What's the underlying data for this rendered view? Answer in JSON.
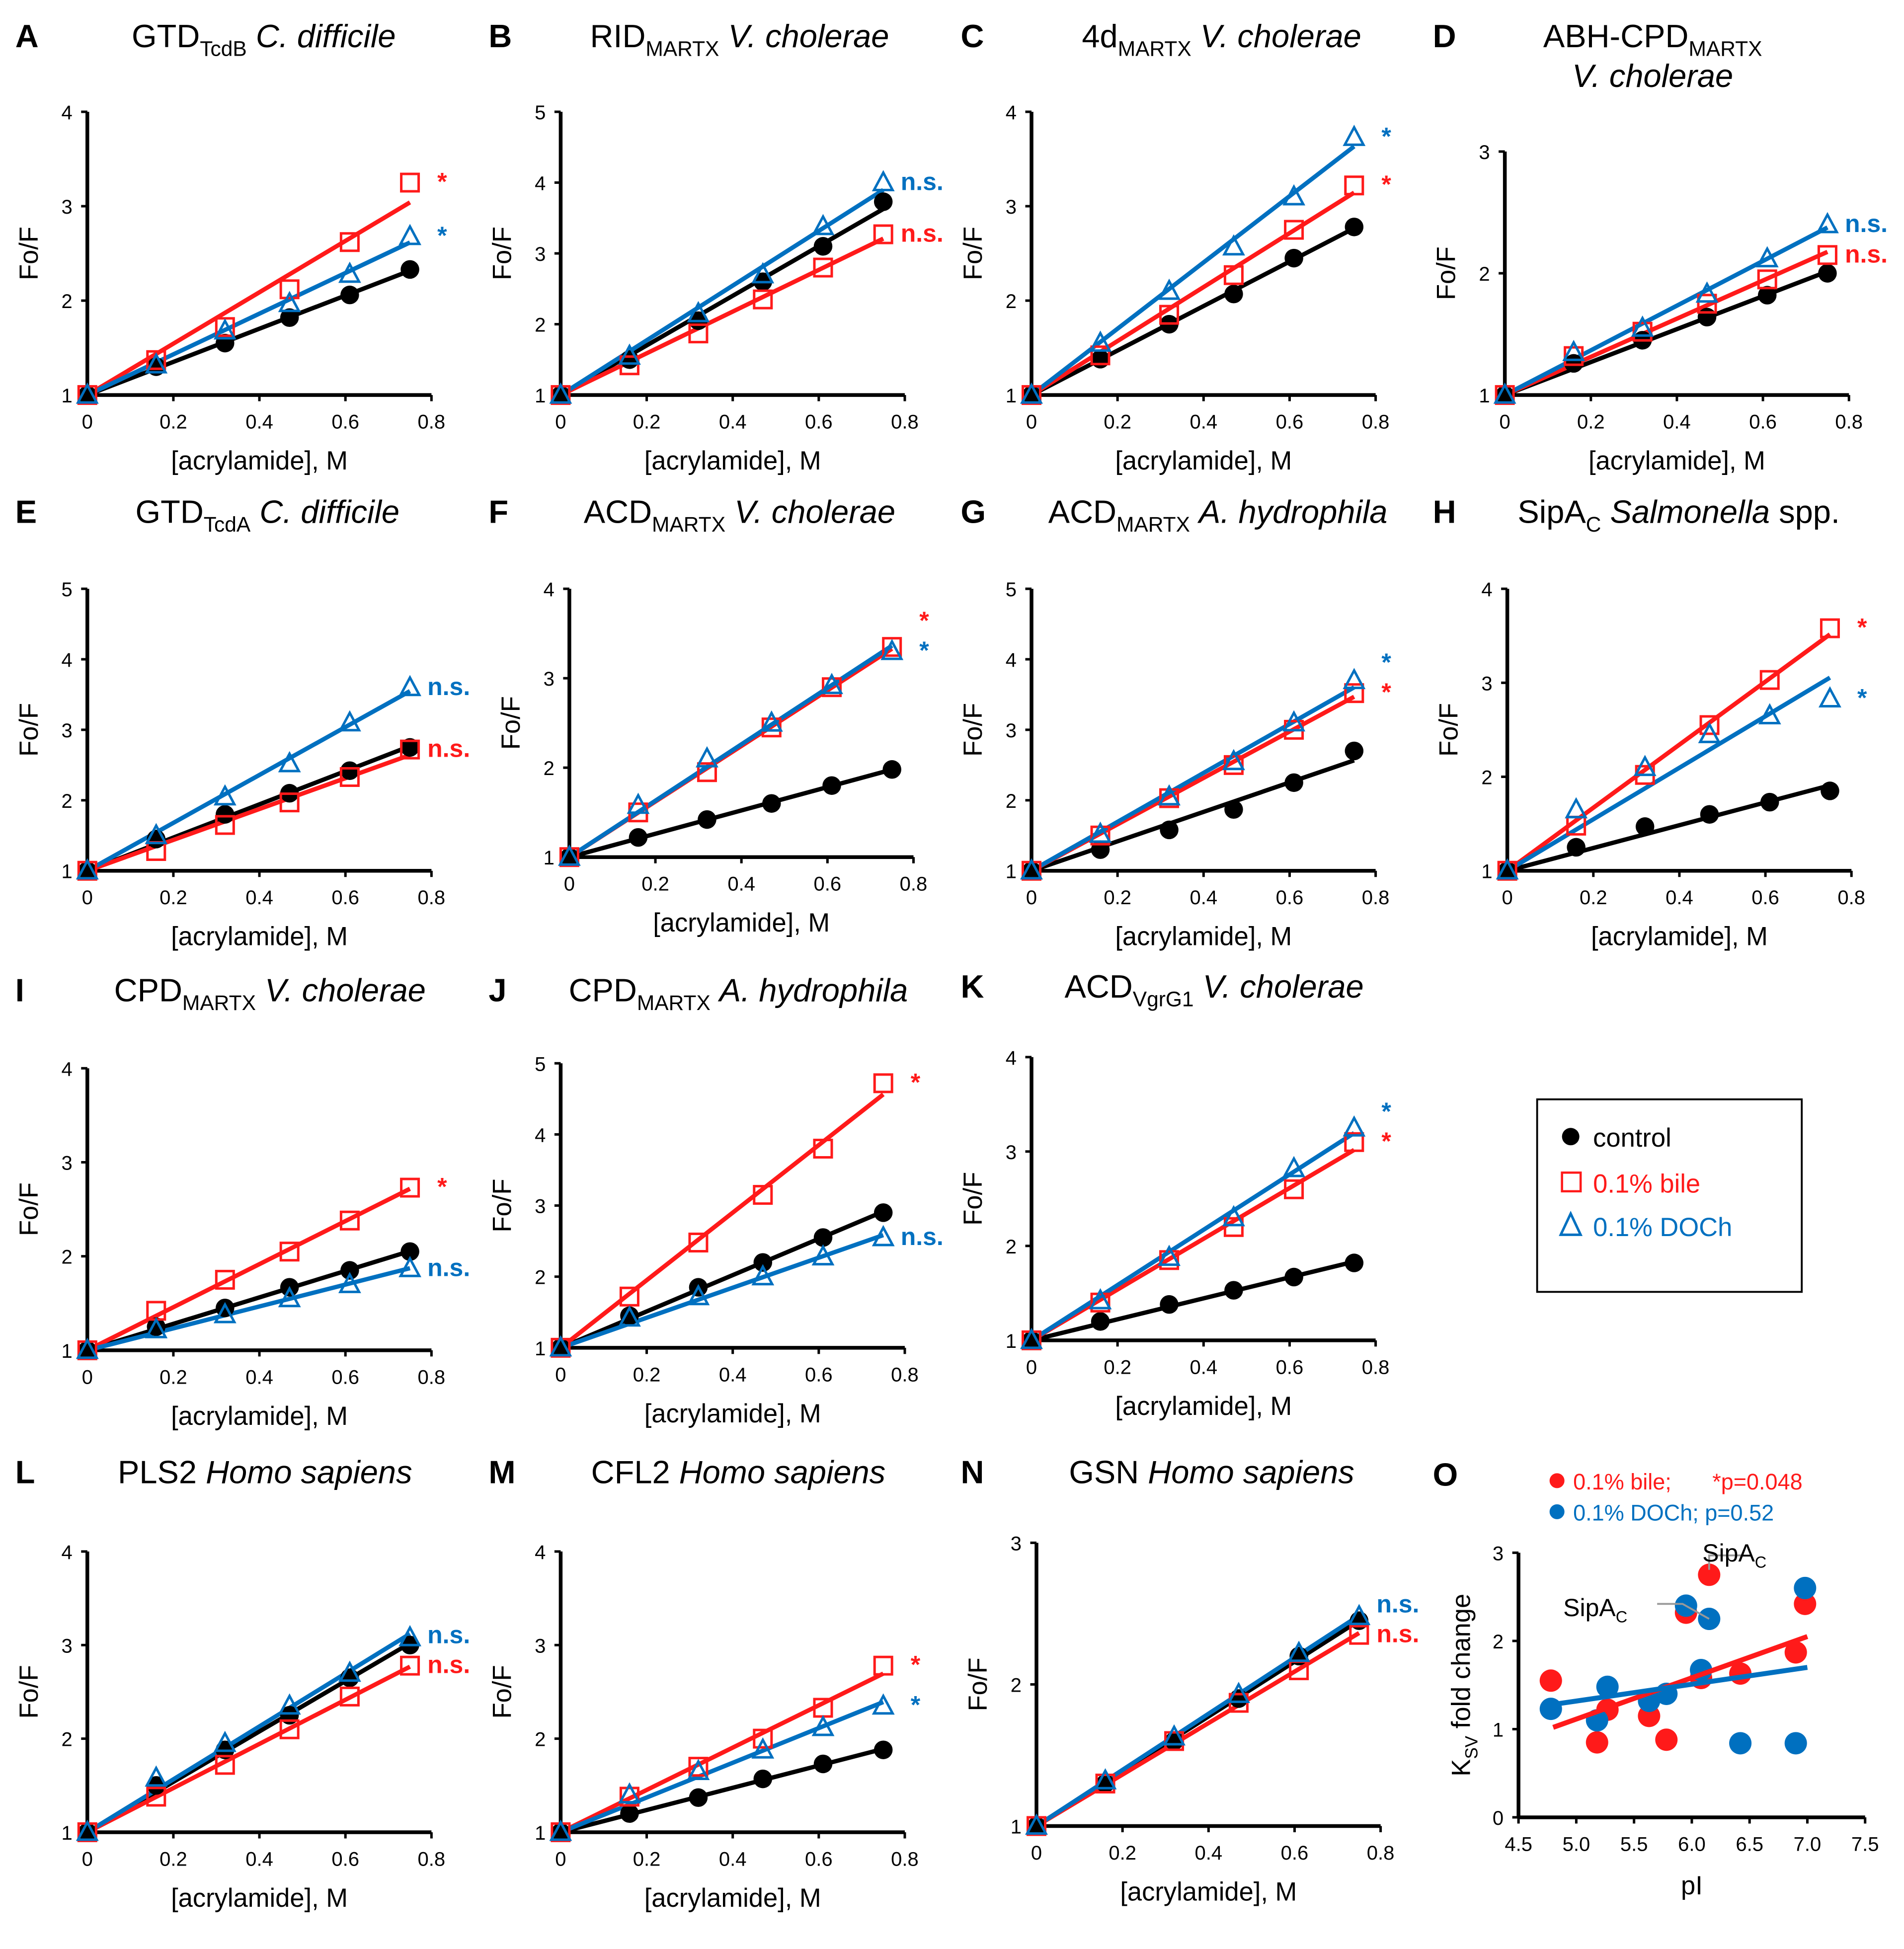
{
  "colors": {
    "control": "#000000",
    "bile": "#ff1a1a",
    "doch": "#0070c0",
    "leader": "#999999"
  },
  "legend": {
    "control": "control",
    "bile": "0.1% bile",
    "doch": "0.1% DOCh"
  },
  "chart_data": [
    {
      "type": "line",
      "letter": "A",
      "title": {
        "pre": "GTD",
        "sub": "TcdB",
        "species": "C. difficile",
        "post": ""
      },
      "xlabel": "[acrylamide], M",
      "ylabel": "Fo/F",
      "xlim": [
        0,
        0.8
      ],
      "ylim": [
        1,
        4
      ],
      "x": [
        0,
        0.16,
        0.32,
        0.47,
        0.61,
        0.75
      ],
      "series": [
        {
          "name": "control",
          "values": [
            1,
            1.3,
            1.55,
            1.82,
            2.06,
            2.33
          ]
        },
        {
          "name": "0.1% bile",
          "values": [
            1,
            1.37,
            1.72,
            2.12,
            2.62,
            3.25
          ],
          "annotation": "*"
        },
        {
          "name": "0.1% DOCh",
          "values": [
            1,
            1.32,
            1.68,
            1.97,
            2.28,
            2.68
          ],
          "annotation": "*"
        }
      ]
    },
    {
      "type": "line",
      "letter": "B",
      "title": {
        "pre": "RID",
        "sub": "MARTX",
        "species": "V. cholerae",
        "post": ""
      },
      "xlabel": "[acrylamide], M",
      "ylabel": "Fo/F",
      "xlim": [
        0,
        0.8
      ],
      "ylim": [
        1,
        5
      ],
      "x": [
        0,
        0.16,
        0.32,
        0.47,
        0.61,
        0.75
      ],
      "series": [
        {
          "name": "control",
          "values": [
            1,
            1.5,
            2.05,
            2.6,
            3.1,
            3.73
          ]
        },
        {
          "name": "0.1% bile",
          "values": [
            1,
            1.42,
            1.87,
            2.35,
            2.8,
            3.27
          ],
          "annotation": "n.s."
        },
        {
          "name": "0.1% DOCh",
          "values": [
            1,
            1.55,
            2.15,
            2.7,
            3.38,
            4.0
          ],
          "annotation": "n.s."
        }
      ]
    },
    {
      "type": "line",
      "letter": "C",
      "title": {
        "pre": "4d",
        "sub": "MARTX",
        "species": "V. cholerae",
        "post": ""
      },
      "xlabel": "[acrylamide], M",
      "ylabel": "Fo/F",
      "xlim": [
        0,
        0.8
      ],
      "ylim": [
        1,
        4
      ],
      "x": [
        0,
        0.16,
        0.32,
        0.47,
        0.61,
        0.75
      ],
      "series": [
        {
          "name": "control",
          "values": [
            1,
            1.38,
            1.75,
            2.07,
            2.45,
            2.78
          ]
        },
        {
          "name": "0.1% bile",
          "values": [
            1,
            1.42,
            1.85,
            2.27,
            2.75,
            3.22
          ],
          "annotation": "*"
        },
        {
          "name": "0.1% DOCh",
          "values": [
            1,
            1.55,
            2.1,
            2.57,
            3.1,
            3.73
          ],
          "annotation": "*"
        }
      ]
    },
    {
      "type": "line",
      "letter": "D",
      "title": {
        "pre": "ABH-CPD",
        "sub": "MARTX",
        "species": "V. cholerae",
        "post": ""
      },
      "xlabel": "[acrylamide], M",
      "ylabel": "Fo/F",
      "xlim": [
        0,
        0.8
      ],
      "ylim": [
        1,
        3
      ],
      "x": [
        0,
        0.16,
        0.32,
        0.47,
        0.61,
        0.75
      ],
      "series": [
        {
          "name": "control",
          "values": [
            1,
            1.26,
            1.45,
            1.64,
            1.82,
            2.0
          ]
        },
        {
          "name": "0.1% bile",
          "values": [
            1,
            1.32,
            1.52,
            1.75,
            1.95,
            2.15
          ],
          "annotation": "n.s."
        },
        {
          "name": "0.1% DOCh",
          "values": [
            1,
            1.35,
            1.55,
            1.83,
            2.12,
            2.4
          ],
          "annotation": "n.s."
        }
      ]
    },
    {
      "type": "line",
      "letter": "E",
      "title": {
        "pre": "GTD",
        "sub": "TcdA",
        "species": "C. difficile",
        "post": ""
      },
      "xlabel": "[acrylamide], M",
      "ylabel": "Fo/F",
      "xlim": [
        0,
        0.8
      ],
      "ylim": [
        1,
        5
      ],
      "x": [
        0,
        0.16,
        0.32,
        0.47,
        0.61,
        0.75
      ],
      "series": [
        {
          "name": "control",
          "values": [
            1,
            1.45,
            1.8,
            2.1,
            2.42,
            2.75
          ]
        },
        {
          "name": "0.1% bile",
          "values": [
            1,
            1.28,
            1.65,
            1.97,
            2.33,
            2.72
          ],
          "annotation": "n.s."
        },
        {
          "name": "0.1% DOCh",
          "values": [
            1,
            1.5,
            2.05,
            2.52,
            3.1,
            3.6
          ],
          "annotation": "n.s."
        }
      ]
    },
    {
      "type": "line",
      "letter": "F",
      "title": {
        "pre": "ACD",
        "sub": "MARTX",
        "species": "V. cholerae",
        "post": ""
      },
      "xlabel": "[acrylamide], M",
      "ylabel": "Fo/F",
      "xlim": [
        0,
        0.8
      ],
      "ylim": [
        1,
        4
      ],
      "x": [
        0,
        0.16,
        0.32,
        0.47,
        0.61,
        0.75
      ],
      "series": [
        {
          "name": "control",
          "values": [
            1,
            1.22,
            1.42,
            1.6,
            1.8,
            1.98
          ]
        },
        {
          "name": "0.1% bile",
          "values": [
            1,
            1.5,
            1.95,
            2.45,
            2.9,
            3.35
          ],
          "annotation": "*"
        },
        {
          "name": "0.1% DOCh",
          "values": [
            1,
            1.58,
            2.1,
            2.5,
            2.92,
            3.3
          ],
          "annotation": "*"
        }
      ]
    },
    {
      "type": "line",
      "letter": "G",
      "title": {
        "pre": "ACD",
        "sub": "MARTX",
        "species": "A. hydrophila",
        "post": ""
      },
      "xlabel": "[acrylamide], M",
      "ylabel": "Fo/F",
      "xlim": [
        0,
        0.8
      ],
      "ylim": [
        1,
        5
      ],
      "x": [
        0,
        0.16,
        0.32,
        0.47,
        0.61,
        0.75
      ],
      "series": [
        {
          "name": "control",
          "values": [
            1,
            1.3,
            1.58,
            1.87,
            2.25,
            2.7
          ]
        },
        {
          "name": "0.1% bile",
          "values": [
            1,
            1.5,
            2.03,
            2.5,
            3.0,
            3.52
          ],
          "annotation": "*"
        },
        {
          "name": "0.1% DOCh",
          "values": [
            1,
            1.52,
            2.05,
            2.55,
            3.1,
            3.7
          ],
          "annotation": "*"
        }
      ]
    },
    {
      "type": "line",
      "letter": "H",
      "title": {
        "pre": "SipA",
        "sub": "C",
        "species": "Salmonella",
        "post": " spp."
      },
      "xlabel": "[acrylamide], M",
      "ylabel": "Fo/F",
      "xlim": [
        0,
        0.8
      ],
      "ylim": [
        1,
        4
      ],
      "x": [
        0,
        0.16,
        0.32,
        0.47,
        0.61,
        0.75
      ],
      "series": [
        {
          "name": "control",
          "values": [
            1,
            1.25,
            1.47,
            1.6,
            1.73,
            1.85
          ]
        },
        {
          "name": "0.1% bile",
          "values": [
            1,
            1.48,
            2.02,
            2.55,
            3.03,
            3.58
          ],
          "annotation": "*"
        },
        {
          "name": "0.1% DOCh",
          "values": [
            1,
            1.65,
            2.1,
            2.45,
            2.65,
            2.83
          ],
          "annotation": "*"
        }
      ]
    },
    {
      "type": "line",
      "letter": "I",
      "title": {
        "pre": "CPD",
        "sub": "MARTX",
        "species": "V. cholerae",
        "post": ""
      },
      "xlabel": "[acrylamide], M",
      "ylabel": "Fo/F",
      "xlim": [
        0,
        0.8
      ],
      "ylim": [
        1,
        4
      ],
      "x": [
        0,
        0.16,
        0.32,
        0.47,
        0.61,
        0.75
      ],
      "series": [
        {
          "name": "control",
          "values": [
            1,
            1.25,
            1.45,
            1.67,
            1.85,
            2.05
          ]
        },
        {
          "name": "0.1% bile",
          "values": [
            1,
            1.42,
            1.75,
            2.05,
            2.38,
            2.73
          ],
          "annotation": "*"
        },
        {
          "name": "0.1% DOCh",
          "values": [
            1,
            1.22,
            1.38,
            1.55,
            1.7,
            1.87
          ],
          "annotation": "n.s."
        }
      ]
    },
    {
      "type": "line",
      "letter": "J",
      "title": {
        "pre": "CPD",
        "sub": "MARTX",
        "species": "A. hydrophila",
        "post": ""
      },
      "xlabel": "[acrylamide], M",
      "ylabel": "Fo/F",
      "xlim": [
        0,
        0.8
      ],
      "ylim": [
        1,
        5
      ],
      "x": [
        0,
        0.16,
        0.32,
        0.47,
        0.61,
        0.75
      ],
      "series": [
        {
          "name": "control",
          "values": [
            1,
            1.45,
            1.85,
            2.2,
            2.55,
            2.9
          ]
        },
        {
          "name": "0.1% bile",
          "values": [
            1,
            1.72,
            2.48,
            3.15,
            3.8,
            4.72
          ],
          "annotation": "*"
        },
        {
          "name": "0.1% DOCh",
          "values": [
            1,
            1.42,
            1.72,
            2.0,
            2.28,
            2.55
          ],
          "annotation": "n.s."
        }
      ]
    },
    {
      "type": "line",
      "letter": "K",
      "title": {
        "pre": "ACD",
        "sub": "VgrG1",
        "species": "V. cholerae",
        "post": ""
      },
      "xlabel": "[acrylamide], M",
      "ylabel": "Fo/F",
      "xlim": [
        0,
        0.8
      ],
      "ylim": [
        1,
        4
      ],
      "x": [
        0,
        0.16,
        0.32,
        0.47,
        0.61,
        0.75
      ],
      "series": [
        {
          "name": "control",
          "values": [
            1,
            1.2,
            1.38,
            1.53,
            1.67,
            1.82
          ]
        },
        {
          "name": "0.1% bile",
          "values": [
            1,
            1.4,
            1.85,
            2.2,
            2.6,
            3.1
          ],
          "annotation": "*"
        },
        {
          "name": "0.1% DOCh",
          "values": [
            1,
            1.42,
            1.88,
            2.3,
            2.82,
            3.25
          ],
          "annotation": "*"
        }
      ]
    },
    {
      "type": "line",
      "letter": "L",
      "title": {
        "pre": "PLS2 ",
        "sub": "",
        "species": "Homo sapiens",
        "post": ""
      },
      "xlabel": "[acrylamide], M",
      "ylabel": "Fo/F",
      "xlim": [
        0,
        0.8
      ],
      "ylim": [
        1,
        4
      ],
      "x": [
        0,
        0.16,
        0.32,
        0.47,
        0.61,
        0.75
      ],
      "series": [
        {
          "name": "control",
          "values": [
            1,
            1.5,
            1.88,
            2.25,
            2.65,
            3.0
          ]
        },
        {
          "name": "0.1% bile",
          "values": [
            1,
            1.38,
            1.72,
            2.1,
            2.45,
            2.78
          ],
          "annotation": "n.s."
        },
        {
          "name": "0.1% DOCh",
          "values": [
            1,
            1.58,
            1.95,
            2.35,
            2.7,
            3.08
          ],
          "annotation": "n.s."
        }
      ]
    },
    {
      "type": "line",
      "letter": "M",
      "title": {
        "pre": "CFL2 ",
        "sub": "",
        "species": "Homo sapiens",
        "post": ""
      },
      "xlabel": "[acrylamide], M",
      "ylabel": "Fo/F",
      "xlim": [
        0,
        0.8
      ],
      "ylim": [
        1,
        4
      ],
      "x": [
        0,
        0.16,
        0.32,
        0.47,
        0.61,
        0.75
      ],
      "series": [
        {
          "name": "control",
          "values": [
            1,
            1.2,
            1.37,
            1.57,
            1.73,
            1.88
          ]
        },
        {
          "name": "0.1% bile",
          "values": [
            1,
            1.38,
            1.7,
            2.0,
            2.33,
            2.78
          ],
          "annotation": "*"
        },
        {
          "name": "0.1% DOCh",
          "values": [
            1,
            1.4,
            1.65,
            1.88,
            2.12,
            2.35
          ],
          "annotation": "*"
        }
      ]
    },
    {
      "type": "line",
      "letter": "N",
      "title": {
        "pre": "GSN ",
        "sub": "",
        "species": "Homo sapiens",
        "post": ""
      },
      "xlabel": "[acrylamide], M",
      "ylabel": "Fo/F",
      "xlim": [
        0,
        0.8
      ],
      "ylim": [
        1,
        3
      ],
      "x": [
        0,
        0.16,
        0.32,
        0.47,
        0.61,
        0.75
      ],
      "series": [
        {
          "name": "control",
          "values": [
            1,
            1.3,
            1.6,
            1.9,
            2.2,
            2.45
          ]
        },
        {
          "name": "0.1% bile",
          "values": [
            1,
            1.3,
            1.6,
            1.87,
            2.1,
            2.35
          ],
          "annotation": "n.s."
        },
        {
          "name": "0.1% DOCh",
          "values": [
            1,
            1.32,
            1.63,
            1.93,
            2.22,
            2.48
          ],
          "annotation": "n.s."
        }
      ]
    },
    {
      "type": "scatter",
      "letter": "O",
      "xlabel": "pI",
      "ylabel": {
        "pre": "K",
        "sub": "SV",
        "post": " fold change"
      },
      "xlim": [
        4.5,
        7.5
      ],
      "ylim": [
        0,
        3
      ],
      "xticks": [
        "4.5",
        "5.0",
        "5.5",
        "6.0",
        "6.5",
        "7.0",
        "7.5"
      ],
      "yticks": [
        "0",
        "1",
        "2",
        "3"
      ],
      "legend": [
        {
          "label": "0.1% bile;",
          "stat": "*p=0.048"
        },
        {
          "label": "0.1% DOCh; p=0.52",
          "stat": ""
        }
      ],
      "series": [
        {
          "name": "0.1% bile",
          "points": [
            [
              4.78,
              1.55
            ],
            [
              5.18,
              0.85
            ],
            [
              5.27,
              1.22
            ],
            [
              5.63,
              1.15
            ],
            [
              5.78,
              0.88
            ],
            [
              5.95,
              2.32
            ],
            [
              6.08,
              1.58
            ],
            [
              6.15,
              2.75
            ],
            [
              6.42,
              1.63
            ],
            [
              6.9,
              1.87
            ],
            [
              6.98,
              2.42
            ]
          ],
          "trend": [
            [
              4.8,
              1.02
            ],
            [
              7.0,
              2.05
            ]
          ]
        },
        {
          "name": "0.1% DOCh",
          "points": [
            [
              4.78,
              1.23
            ],
            [
              5.18,
              1.1
            ],
            [
              5.27,
              1.48
            ],
            [
              5.63,
              1.32
            ],
            [
              5.78,
              1.4
            ],
            [
              5.95,
              2.4
            ],
            [
              6.08,
              1.67
            ],
            [
              6.15,
              2.25
            ],
            [
              6.42,
              0.84
            ],
            [
              6.9,
              0.84
            ],
            [
              6.98,
              2.6
            ]
          ],
          "trend": [
            [
              4.8,
              1.28
            ],
            [
              7.0,
              1.7
            ]
          ]
        }
      ],
      "annotations": [
        {
          "pre": "SipA",
          "sub": "C",
          "series": "0.1% bile",
          "point": [
            6.15,
            2.75
          ]
        },
        {
          "pre": "SipA",
          "sub": "C",
          "series": "0.1% DOCh",
          "point": [
            6.15,
            2.25
          ]
        }
      ]
    }
  ]
}
